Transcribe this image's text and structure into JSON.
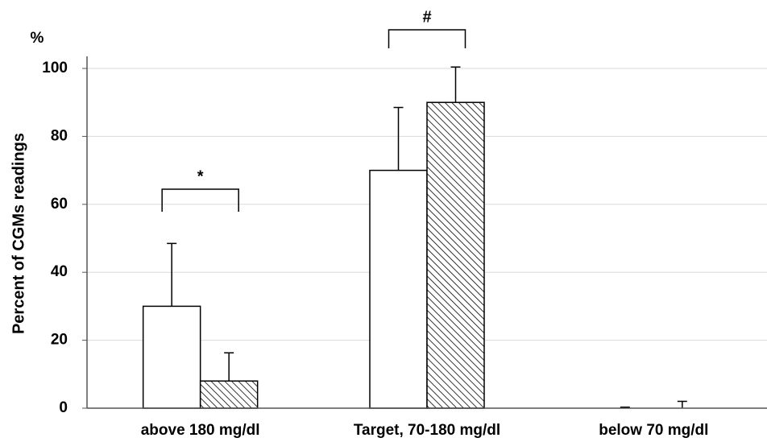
{
  "chart_data": {
    "type": "bar",
    "y_label": "Percent of CGMs readings",
    "y_unit": "%",
    "categories": [
      "above 180 mg/dl",
      "Target, 70-180 mg/dl",
      "below 70 mg/dl"
    ],
    "series": [
      {
        "color": "#ffffff",
        "values": [
          30,
          70,
          0
        ],
        "errors": [
          18.5,
          18.5,
          0.3
        ]
      },
      {
        "color": "#ffffff",
        "hatch": true,
        "values": [
          8,
          90,
          0
        ],
        "errors": [
          8.3,
          10.4,
          2
        ]
      }
    ],
    "annotations": [
      {
        "text": "*",
        "category": 0
      },
      {
        "text": "#",
        "category": 1
      }
    ],
    "ylim": [
      0,
      100
    ],
    "yticks": [
      0,
      20,
      40,
      60,
      80,
      100
    ],
    "grid": true
  }
}
